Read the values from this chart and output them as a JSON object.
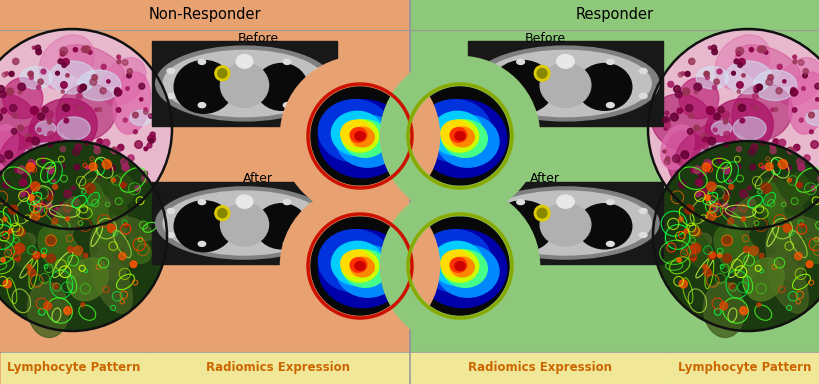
{
  "fig_width": 8.2,
  "fig_height": 3.84,
  "dpi": 100,
  "left_bg": "#E8A272",
  "right_bg": "#8EC87A",
  "left_title": "Non-Responder",
  "right_title": "Responder",
  "left_label1": "Lymphocyte Pattern",
  "left_label2": "Radiomics Expression",
  "right_label1": "Radiomics Expression",
  "right_label2": "Lymphocyte Pattern",
  "before_label": "Before",
  "after_label": "After",
  "divider_color": "#999999",
  "label_bg": "#F0E898",
  "label_text_color": "#CC6600",
  "title_fontsize": 10.5,
  "label_fontsize": 8.5,
  "sub_label_fontsize": 9,
  "heatmap_border_left": "#CC1100",
  "heatmap_border_right": "#88AA00"
}
